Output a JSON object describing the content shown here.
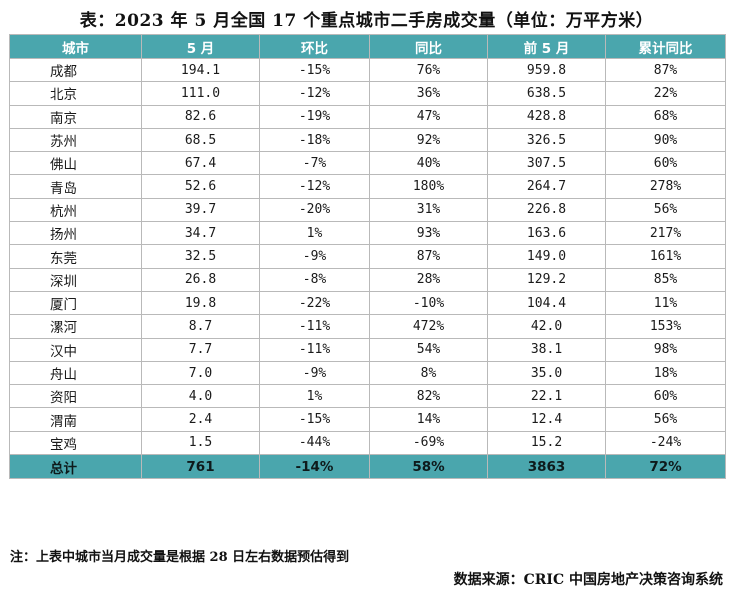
{
  "title": "表：2023 年 5 月全国 17 个重点城市二手房成交量（单位：万平方米）",
  "headers": [
    "城市",
    "5 月",
    "环比",
    "同比",
    "前 5 月",
    "累计同比"
  ],
  "rows": [
    [
      "成都",
      "194.1",
      "-15%",
      "76%",
      "959.8",
      "87%"
    ],
    [
      "北京",
      "111.0",
      "-12%",
      "36%",
      "638.5",
      "22%"
    ],
    [
      "南京",
      "82.6",
      "-19%",
      "47%",
      "428.8",
      "68%"
    ],
    [
      "苏州",
      "68.5",
      "-18%",
      "92%",
      "326.5",
      "90%"
    ],
    [
      "佛山",
      "67.4",
      "-7%",
      "40%",
      "307.5",
      "60%"
    ],
    [
      "青岛",
      "52.6",
      "-12%",
      "180%",
      "264.7",
      "278%"
    ],
    [
      "杭州",
      "39.7",
      "-20%",
      "31%",
      "226.8",
      "56%"
    ],
    [
      "扬州",
      "34.7",
      "1%",
      "93%",
      "163.6",
      "217%"
    ],
    [
      "东莞",
      "32.5",
      "-9%",
      "87%",
      "149.0",
      "161%"
    ],
    [
      "深圳",
      "26.8",
      "-8%",
      "28%",
      "129.2",
      "85%"
    ],
    [
      "厦门",
      "19.8",
      "-22%",
      "-10%",
      "104.4",
      "11%"
    ],
    [
      "漯河",
      "8.7",
      "-11%",
      "472%",
      "42.0",
      "153%"
    ],
    [
      "汉中",
      "7.7",
      "-11%",
      "54%",
      "38.1",
      "98%"
    ],
    [
      "舟山",
      "7.0",
      "-9%",
      "8%",
      "35.0",
      "18%"
    ],
    [
      "资阳",
      "4.0",
      "1%",
      "82%",
      "22.1",
      "60%"
    ],
    [
      "渭南",
      "2.4",
      "-15%",
      "14%",
      "12.4",
      "56%"
    ],
    [
      "宝鸡",
      "1.5",
      "-44%",
      "-69%",
      "15.2",
      "-24%"
    ]
  ],
  "total": [
    "总计",
    "761",
    "-14%",
    "58%",
    "3863",
    "72%"
  ],
  "note": "注：上表中城市当月成交量是根据 28 日左右数据预估得到",
  "source": "数据来源：CRIC 中国房地产决策咨询系统",
  "colors": {
    "header_bg": "#4aa6ad",
    "header_text": "#ffffff",
    "grid": "#b9b9b9"
  }
}
